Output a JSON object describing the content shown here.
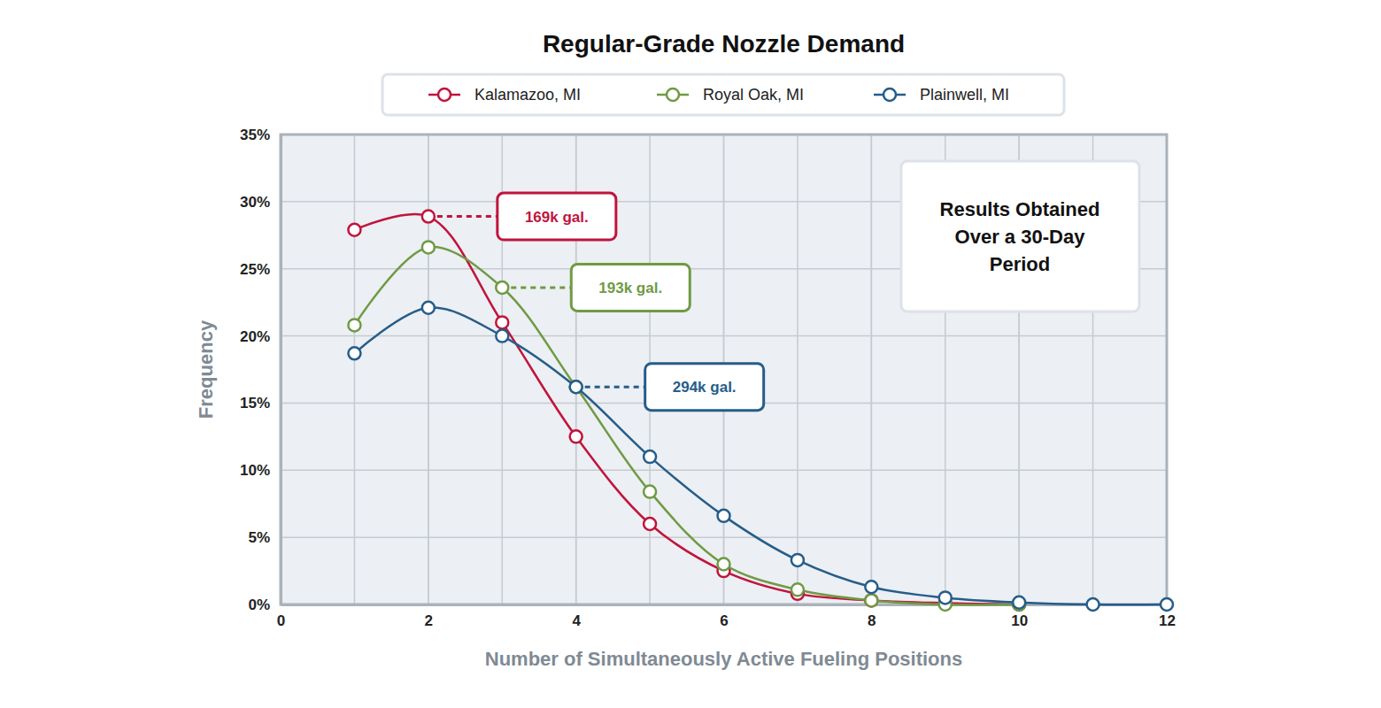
{
  "chart_data": {
    "type": "line",
    "title": "Regular-Grade Nozzle Demand",
    "x_label": "Number of Simultaneously Active Fueling Positions",
    "y_label": "Frequency",
    "x": [
      1,
      2,
      3,
      4,
      5,
      6,
      7,
      8,
      9,
      10,
      11,
      12
    ],
    "series": [
      {
        "name": "Kalamazoo, MI",
        "color": "#c0143c",
        "values": [
          27.9,
          28.9,
          21.0,
          12.5,
          6.0,
          2.5,
          0.8,
          0.3,
          0.1,
          0.0,
          null,
          null
        ]
      },
      {
        "name": "Royal Oak, MI",
        "color": "#6f9a44",
        "values": [
          20.8,
          26.6,
          23.6,
          16.2,
          8.4,
          3.0,
          1.1,
          0.3,
          0.0,
          0.0,
          null,
          null
        ]
      },
      {
        "name": "Plainwell, MI",
        "color": "#255d8a",
        "values": [
          18.7,
          22.1,
          20.0,
          16.2,
          11.0,
          6.6,
          3.3,
          1.3,
          0.5,
          0.15,
          0.0,
          0.0
        ]
      }
    ],
    "xlim": [
      0,
      12
    ],
    "xticks": [
      0,
      2,
      4,
      6,
      8,
      10,
      12
    ],
    "ylim": [
      0,
      35
    ],
    "yticks": [
      {
        "value": 0,
        "label": "0%"
      },
      {
        "value": 5,
        "label": "5%"
      },
      {
        "value": 10,
        "label": "10%"
      },
      {
        "value": 15,
        "label": "15%"
      },
      {
        "value": 20,
        "label": "20%"
      },
      {
        "value": 25,
        "label": "25%"
      },
      {
        "value": 30,
        "label": "30%"
      },
      {
        "value": 35,
        "label": "35%"
      }
    ],
    "grid": true,
    "legend": "top",
    "marker": "circle",
    "annotations": [
      {
        "text": "169k gal.",
        "series": "Kalamazoo, MI",
        "x": 2
      },
      {
        "text": "193k gal.",
        "series": "Royal Oak, MI",
        "x": 3
      },
      {
        "text": "294k gal.",
        "series": "Plainwell, MI",
        "x": 4
      }
    ],
    "note": [
      "Results Obtained",
      "Over a 30-Day",
      "Period"
    ]
  }
}
